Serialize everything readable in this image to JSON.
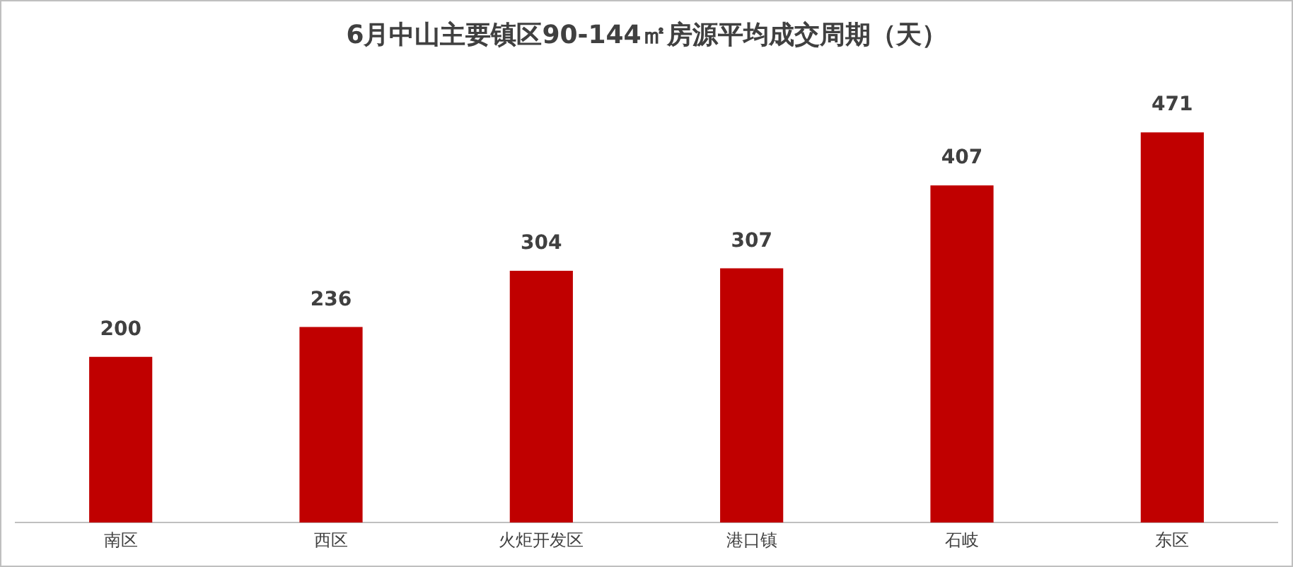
{
  "chart_data": {
    "type": "bar",
    "title": "6月中山主要镇区90-144㎡房源平均成交周期（天）",
    "categories": [
      "南区",
      "西区",
      "火炬开发区",
      "港口镇",
      "石岐",
      "东区"
    ],
    "values": [
      200,
      236,
      304,
      307,
      407,
      471
    ],
    "color": "#c00000",
    "data_labels": true,
    "grid": false,
    "legend": false
  }
}
